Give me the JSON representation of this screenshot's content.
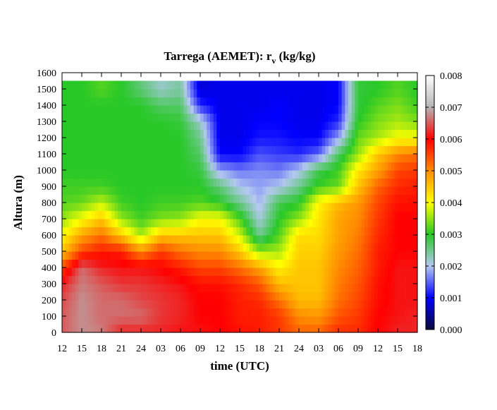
{
  "chart_data": {
    "type": "heatmap",
    "title_prefix": "Tarrega (AEMET): r",
    "title_subscript": "v",
    "title_suffix": " (kg/kg)",
    "xlabel": "time (UTC)",
    "ylabel": "Altura (m)",
    "x_tick_labels": [
      "12",
      "15",
      "18",
      "21",
      "24",
      "03",
      "06",
      "09",
      "12",
      "15",
      "18",
      "21",
      "24",
      "03",
      "06",
      "09",
      "12",
      "15",
      "18"
    ],
    "x_range_hours": [
      0,
      54
    ],
    "ylim": [
      0,
      1600
    ],
    "y_ticks": [
      0,
      100,
      200,
      300,
      400,
      500,
      600,
      700,
      800,
      900,
      1000,
      1100,
      1200,
      1300,
      1400,
      1500,
      1600
    ],
    "data_top_height_m": 1550,
    "colorbar": {
      "range": [
        0.0,
        0.008
      ],
      "tick_labels": [
        "0.000",
        "0.001",
        "0.002",
        "0.003",
        "0.004",
        "0.005",
        "0.006",
        "0.007",
        "0.008"
      ],
      "colors": [
        "#0a0a3c",
        "#0000ff",
        "#b4c8f0",
        "#28c828",
        "#ffff00",
        "#ff8c00",
        "#ff0000",
        "#b4b4b4",
        "#ffffff"
      ]
    },
    "profiles": {
      "time_hours": [
        0,
        3,
        6,
        9,
        12,
        15,
        18,
        21,
        24,
        27,
        30,
        33,
        36,
        39,
        42,
        45,
        48,
        51,
        54
      ],
      "height_m": [
        0,
        100,
        200,
        300,
        400,
        500,
        600,
        700,
        800,
        900,
        1000,
        1100,
        1200,
        1300,
        1400,
        1500
      ],
      "rv_kgkg": [
        [
          0.0065,
          0.0065,
          0.0064,
          0.0062,
          0.0055,
          0.0045,
          0.004,
          0.0035,
          0.0032,
          0.0031,
          0.003,
          0.003,
          0.003,
          0.003,
          0.003,
          0.003
        ],
        [
          0.0068,
          0.0068,
          0.0068,
          0.0067,
          0.0066,
          0.0055,
          0.0048,
          0.004,
          0.0033,
          0.0031,
          0.003,
          0.003,
          0.003,
          0.003,
          0.003,
          0.003
        ],
        [
          0.0067,
          0.0066,
          0.0066,
          0.0065,
          0.0062,
          0.0058,
          0.0052,
          0.0045,
          0.0037,
          0.0031,
          0.003,
          0.003,
          0.003,
          0.003,
          0.003,
          0.0032
        ],
        [
          0.0062,
          0.0066,
          0.0066,
          0.0063,
          0.0061,
          0.0058,
          0.0045,
          0.0035,
          0.0031,
          0.003,
          0.003,
          0.003,
          0.003,
          0.003,
          0.003,
          0.003
        ],
        [
          0.0062,
          0.0066,
          0.0064,
          0.0063,
          0.0061,
          0.005,
          0.0036,
          0.0031,
          0.003,
          0.003,
          0.003,
          0.003,
          0.003,
          0.003,
          0.003,
          0.0026
        ],
        [
          0.0062,
          0.0063,
          0.0063,
          0.0062,
          0.006,
          0.0056,
          0.0045,
          0.0034,
          0.0031,
          0.003,
          0.003,
          0.003,
          0.003,
          0.003,
          0.0027,
          0.0022
        ],
        [
          0.0061,
          0.0062,
          0.0062,
          0.0061,
          0.0058,
          0.0052,
          0.0045,
          0.0035,
          0.0031,
          0.003,
          0.003,
          0.003,
          0.003,
          0.0029,
          0.0027,
          0.0024
        ],
        [
          0.0061,
          0.006,
          0.006,
          0.0059,
          0.0055,
          0.005,
          0.0045,
          0.004,
          0.0032,
          0.003,
          0.0029,
          0.0027,
          0.0025,
          0.0022,
          0.0012,
          0.0008
        ],
        [
          0.006,
          0.006,
          0.006,
          0.0059,
          0.0055,
          0.005,
          0.0045,
          0.004,
          0.003,
          0.0026,
          0.0018,
          0.001,
          0.0009,
          0.0009,
          0.0009,
          0.0009
        ],
        [
          0.0059,
          0.0058,
          0.0058,
          0.0057,
          0.0052,
          0.0045,
          0.0038,
          0.0032,
          0.0025,
          0.002,
          0.0016,
          0.001,
          0.0009,
          0.0009,
          0.0009,
          0.0009
        ],
        [
          0.0058,
          0.0058,
          0.0057,
          0.0054,
          0.0048,
          0.0035,
          0.0025,
          0.0021,
          0.0019,
          0.0018,
          0.0017,
          0.0014,
          0.0011,
          0.001,
          0.0009,
          0.0009
        ],
        [
          0.0056,
          0.0056,
          0.0052,
          0.0046,
          0.0041,
          0.0036,
          0.0032,
          0.003,
          0.0028,
          0.002,
          0.0016,
          0.0013,
          0.0011,
          0.001,
          0.001,
          0.0009
        ],
        [
          0.0053,
          0.005,
          0.0046,
          0.0045,
          0.0045,
          0.0044,
          0.0043,
          0.0035,
          0.003,
          0.0025,
          0.002,
          0.0012,
          0.001,
          0.0009,
          0.0009,
          0.0009
        ],
        [
          0.0053,
          0.0049,
          0.0046,
          0.0045,
          0.0045,
          0.0044,
          0.0043,
          0.0042,
          0.0041,
          0.0031,
          0.0028,
          0.0015,
          0.001,
          0.0009,
          0.0009,
          0.0009
        ],
        [
          0.0057,
          0.0054,
          0.0052,
          0.0051,
          0.005,
          0.0049,
          0.0048,
          0.0048,
          0.0046,
          0.0033,
          0.0031,
          0.0027,
          0.0018,
          0.0012,
          0.001,
          0.001
        ],
        [
          0.0057,
          0.0056,
          0.0055,
          0.0054,
          0.0053,
          0.0052,
          0.0051,
          0.005,
          0.0049,
          0.0045,
          0.0042,
          0.0035,
          0.0033,
          0.003,
          0.0029,
          0.0029
        ],
        [
          0.006,
          0.006,
          0.0059,
          0.0059,
          0.0058,
          0.0058,
          0.0057,
          0.0056,
          0.0055,
          0.0053,
          0.0048,
          0.0045,
          0.0036,
          0.0034,
          0.0032,
          0.003
        ],
        [
          0.0062,
          0.0061,
          0.0061,
          0.0061,
          0.0061,
          0.006,
          0.006,
          0.006,
          0.0059,
          0.0057,
          0.0055,
          0.005,
          0.004,
          0.0036,
          0.0034,
          0.0032
        ],
        [
          0.0062,
          0.0062,
          0.0061,
          0.0061,
          0.0061,
          0.006,
          0.006,
          0.006,
          0.0059,
          0.0058,
          0.0056,
          0.0052,
          0.004,
          0.0034,
          0.0031,
          0.003
        ]
      ]
    }
  }
}
